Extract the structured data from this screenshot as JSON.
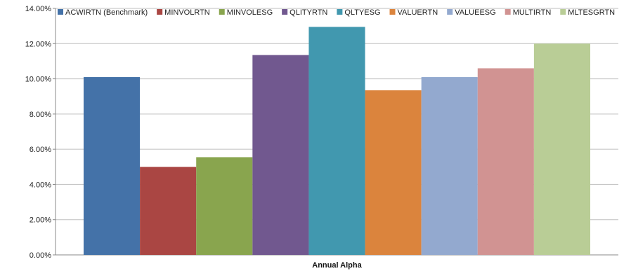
{
  "chart_data": {
    "type": "bar",
    "categories": [
      "Annual Alpha"
    ],
    "series": [
      {
        "name": "ACWIRTN (Benchmark)",
        "color": "#4472a8",
        "values": [
          10.1
        ]
      },
      {
        "name": "MINVOLRTN",
        "color": "#aa4643",
        "values": [
          5.0
        ]
      },
      {
        "name": "MINVOLESG",
        "color": "#89a54e",
        "values": [
          5.55
        ]
      },
      {
        "name": "QLITYRTN",
        "color": "#71588f",
        "values": [
          11.35
        ]
      },
      {
        "name": "QLTYESG",
        "color": "#4198af",
        "values": [
          12.95
        ]
      },
      {
        "name": "VALUERTN",
        "color": "#db843d",
        "values": [
          9.35
        ]
      },
      {
        "name": "VALUEESG",
        "color": "#93a9cf",
        "values": [
          10.1
        ]
      },
      {
        "name": "MULTIRTN",
        "color": "#d19392",
        "values": [
          10.6
        ]
      },
      {
        "name": "MLTESGRTN",
        "color": "#b9cd96",
        "values": [
          12.0
        ]
      }
    ],
    "yticks": [
      "0.00%",
      "2.00%",
      "4.00%",
      "6.00%",
      "8.00%",
      "10.00%",
      "12.00%",
      "14.00%"
    ],
    "ylim": [
      0,
      14
    ],
    "grid": true,
    "legend": "top",
    "title": "",
    "xlabel": "",
    "ylabel": ""
  }
}
